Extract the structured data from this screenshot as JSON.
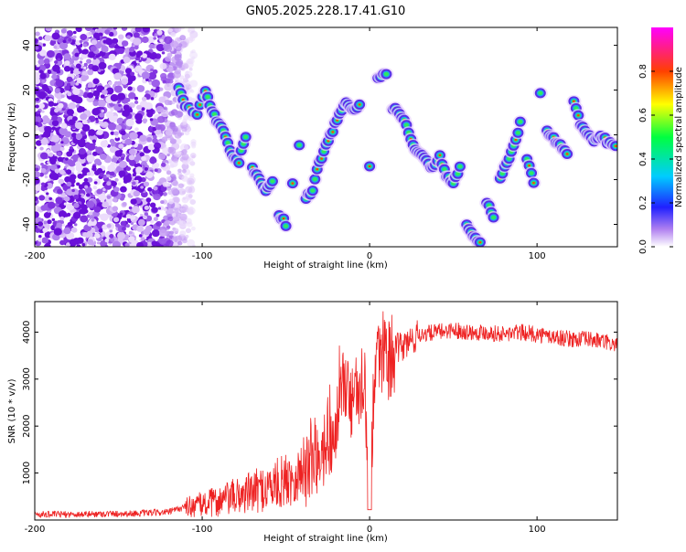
{
  "chart_data": [
    {
      "type": "heatmap",
      "title": "GN05.2025.228.17.41.G10",
      "xlabel": "Height of straight line (km)",
      "ylabel": "Frequency (Hz)",
      "xlim": [
        -200,
        148
      ],
      "ylim": [
        -50,
        48
      ],
      "xticks": [
        -200,
        -100,
        0,
        100
      ],
      "yticks": [
        -40,
        -20,
        0,
        20,
        40
      ],
      "colorbar": {
        "label": "Normalized spectral amplitude",
        "range": [
          0,
          1
        ],
        "ticks": [
          0.0,
          0.2,
          0.4,
          0.6,
          0.8
        ],
        "tick_labels": [
          "0.0",
          "0.2",
          "0.4",
          "0.6",
          "0.8"
        ]
      },
      "ridge": {
        "name": "dominant frequency track",
        "x": [
          -114,
          -110,
          -103,
          -98,
          -94,
          -90,
          -86,
          -82,
          -78,
          -74,
          -70,
          -66,
          -62,
          -58,
          -54,
          -50,
          -46,
          -42,
          -38,
          -34,
          -30,
          -26,
          -22,
          -18,
          -14,
          -10,
          -6,
          0,
          5,
          10,
          14,
          18,
          22,
          26,
          30,
          34,
          38,
          42,
          46,
          50,
          54,
          58,
          62,
          66,
          70,
          74,
          78,
          82,
          86,
          90,
          94,
          98,
          102,
          106,
          110,
          114,
          118,
          122,
          126,
          130,
          134,
          138,
          142,
          147
        ],
        "y": [
          22,
          12,
          10,
          20,
          10,
          5,
          0,
          -10,
          -12,
          0,
          -15,
          -20,
          -25,
          -20,
          -35,
          -40,
          -22,
          -5,
          -28,
          -25,
          -12,
          -5,
          2,
          10,
          14,
          12,
          13,
          -15,
          25,
          27,
          12,
          10,
          5,
          -5,
          -8,
          -12,
          -15,
          -10,
          -18,
          -22,
          -15,
          -40,
          -45,
          -48,
          -30,
          -36,
          -20,
          -12,
          -5,
          5,
          -10,
          -22,
          18,
          2,
          -2,
          -5,
          -8,
          14,
          5,
          0,
          -3,
          0,
          -3,
          -5
        ]
      }
    },
    {
      "type": "line",
      "xlabel": "Height of straight line (km)",
      "ylabel": "SNR (10 * v/v)",
      "xlim": [
        -200,
        148
      ],
      "ylim": [
        0,
        4650
      ],
      "xticks": [
        -200,
        -100,
        0,
        100
      ],
      "yticks": [
        1000,
        2000,
        3000,
        4000
      ],
      "color": "#ee2222",
      "series": [
        {
          "x": [
            -200,
            -180,
            -160,
            -140,
            -120,
            -110,
            -100,
            -90,
            -80,
            -70,
            -60,
            -50,
            -40,
            -35,
            -30,
            -25,
            -20,
            -17,
            -15,
            -12,
            -10,
            -8,
            -5,
            -3,
            0,
            3,
            5,
            10,
            15,
            20,
            30,
            40,
            50,
            60,
            70,
            80,
            90,
            100,
            110,
            120,
            130,
            140,
            148
          ],
          "y": [
            120,
            120,
            130,
            140,
            170,
            280,
            330,
            400,
            500,
            600,
            700,
            850,
            1000,
            1300,
            1500,
            1700,
            2000,
            2500,
            2800,
            2600,
            2400,
            2600,
            2900,
            3100,
            200,
            3200,
            3300,
            3400,
            3600,
            3700,
            3950,
            4000,
            4050,
            4000,
            4000,
            3950,
            4000,
            3950,
            3900,
            3850,
            3850,
            3800,
            3700
          ]
        }
      ]
    }
  ]
}
